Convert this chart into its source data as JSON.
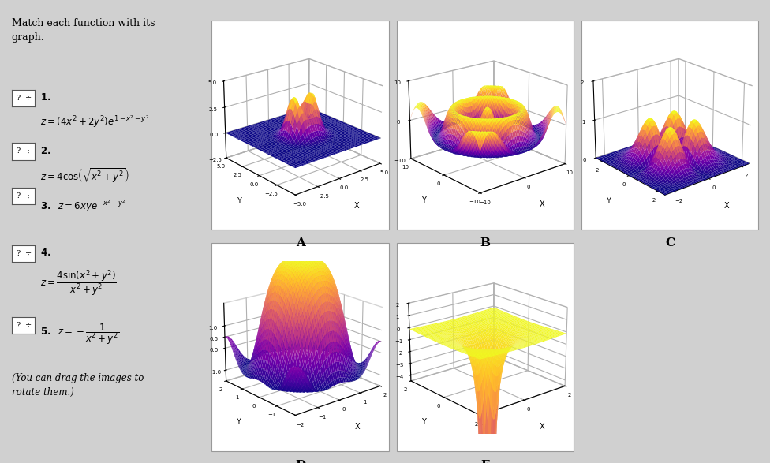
{
  "bg_color": "#d0d0d0",
  "plot_bg": "#f0f0f0",
  "fig_width": 9.76,
  "fig_height": 5.87,
  "plots": [
    {
      "key": "A",
      "type": "gaussian_bump",
      "xrange": [
        -5,
        5
      ],
      "yrange": [
        -5,
        5
      ],
      "xlim": [
        -5,
        5
      ],
      "ylim": [
        -5,
        5
      ],
      "zlim": [
        -2.5,
        5.0
      ],
      "xticks": [
        -5.0,
        -2.5,
        0.0,
        2.5,
        5.0
      ],
      "yticks": [
        -2.5,
        0.0,
        2.5,
        5.0
      ],
      "zticks": [
        -2.5,
        0.0,
        2.5,
        5.0
      ],
      "elev": 22,
      "azim": -130,
      "n": 40,
      "xlabel": "X",
      "ylabel": "Y"
    },
    {
      "key": "B",
      "type": "cos_radial",
      "xrange": [
        -10,
        10
      ],
      "yrange": [
        -10,
        10
      ],
      "xlim": [
        -10,
        10
      ],
      "ylim": [
        -10,
        10
      ],
      "zlim": [
        -10,
        10
      ],
      "xticks": [
        -10.0,
        0.0,
        10.0
      ],
      "yticks": [
        -10.0,
        0.0,
        10.0
      ],
      "zticks": [
        -10.0,
        0.0,
        10.0
      ],
      "elev": 20,
      "azim": -130,
      "n": 60,
      "xlabel": "X",
      "ylabel": "Y"
    },
    {
      "key": "C",
      "type": "saddle_gauss",
      "xrange": [
        -2.5,
        2.5
      ],
      "yrange": [
        -2.5,
        2.5
      ],
      "xlim": [
        -2.5,
        2.5
      ],
      "ylim": [
        -2.5,
        2.5
      ],
      "zlim": [
        0.0,
        2.0
      ],
      "xticks": [
        -2.0,
        0.0,
        2.0
      ],
      "yticks": [
        -2.0,
        0.0,
        2.0
      ],
      "zticks": [
        0.0,
        1.0,
        2.0
      ],
      "elev": 22,
      "azim": -130,
      "n": 40,
      "xlabel": "X",
      "ylabel": "Y"
    },
    {
      "key": "D",
      "type": "sinc_2d",
      "xrange": [
        -2,
        2
      ],
      "yrange": [
        -2,
        2
      ],
      "xlim": [
        -2,
        2
      ],
      "ylim": [
        -2,
        2
      ],
      "zlim": [
        -1.5,
        2.0
      ],
      "xticks": [
        -2.0,
        -1.0,
        0.0,
        1.0,
        2.0
      ],
      "yticks": [
        -1.0,
        0.0,
        1.0,
        2.0
      ],
      "zticks": [
        -1.0,
        0.0,
        0.5,
        1.0
      ],
      "elev": 20,
      "azim": -130,
      "n": 50,
      "xlabel": "X",
      "ylabel": "Y"
    },
    {
      "key": "E",
      "type": "neg_inv_r2",
      "xrange": [
        -2,
        2
      ],
      "yrange": [
        -2,
        2
      ],
      "xlim": [
        -2,
        2
      ],
      "ylim": [
        -2,
        2
      ],
      "zlim": [
        -4.5,
        2.0
      ],
      "xticks": [
        -2.0,
        0.0,
        2.0
      ],
      "yticks": [
        -2.0,
        0.0,
        2.0
      ],
      "zticks": [
        -4.0,
        -3.0,
        -2.0,
        -1.0,
        0.0,
        1.0,
        2.0
      ],
      "elev": 20,
      "azim": -130,
      "n": 50,
      "xlabel": "X",
      "ylabel": "Y"
    }
  ],
  "label_fontsize": 11,
  "tick_fontsize": 5,
  "axis_label_fontsize": 7,
  "cmap": "plasma"
}
